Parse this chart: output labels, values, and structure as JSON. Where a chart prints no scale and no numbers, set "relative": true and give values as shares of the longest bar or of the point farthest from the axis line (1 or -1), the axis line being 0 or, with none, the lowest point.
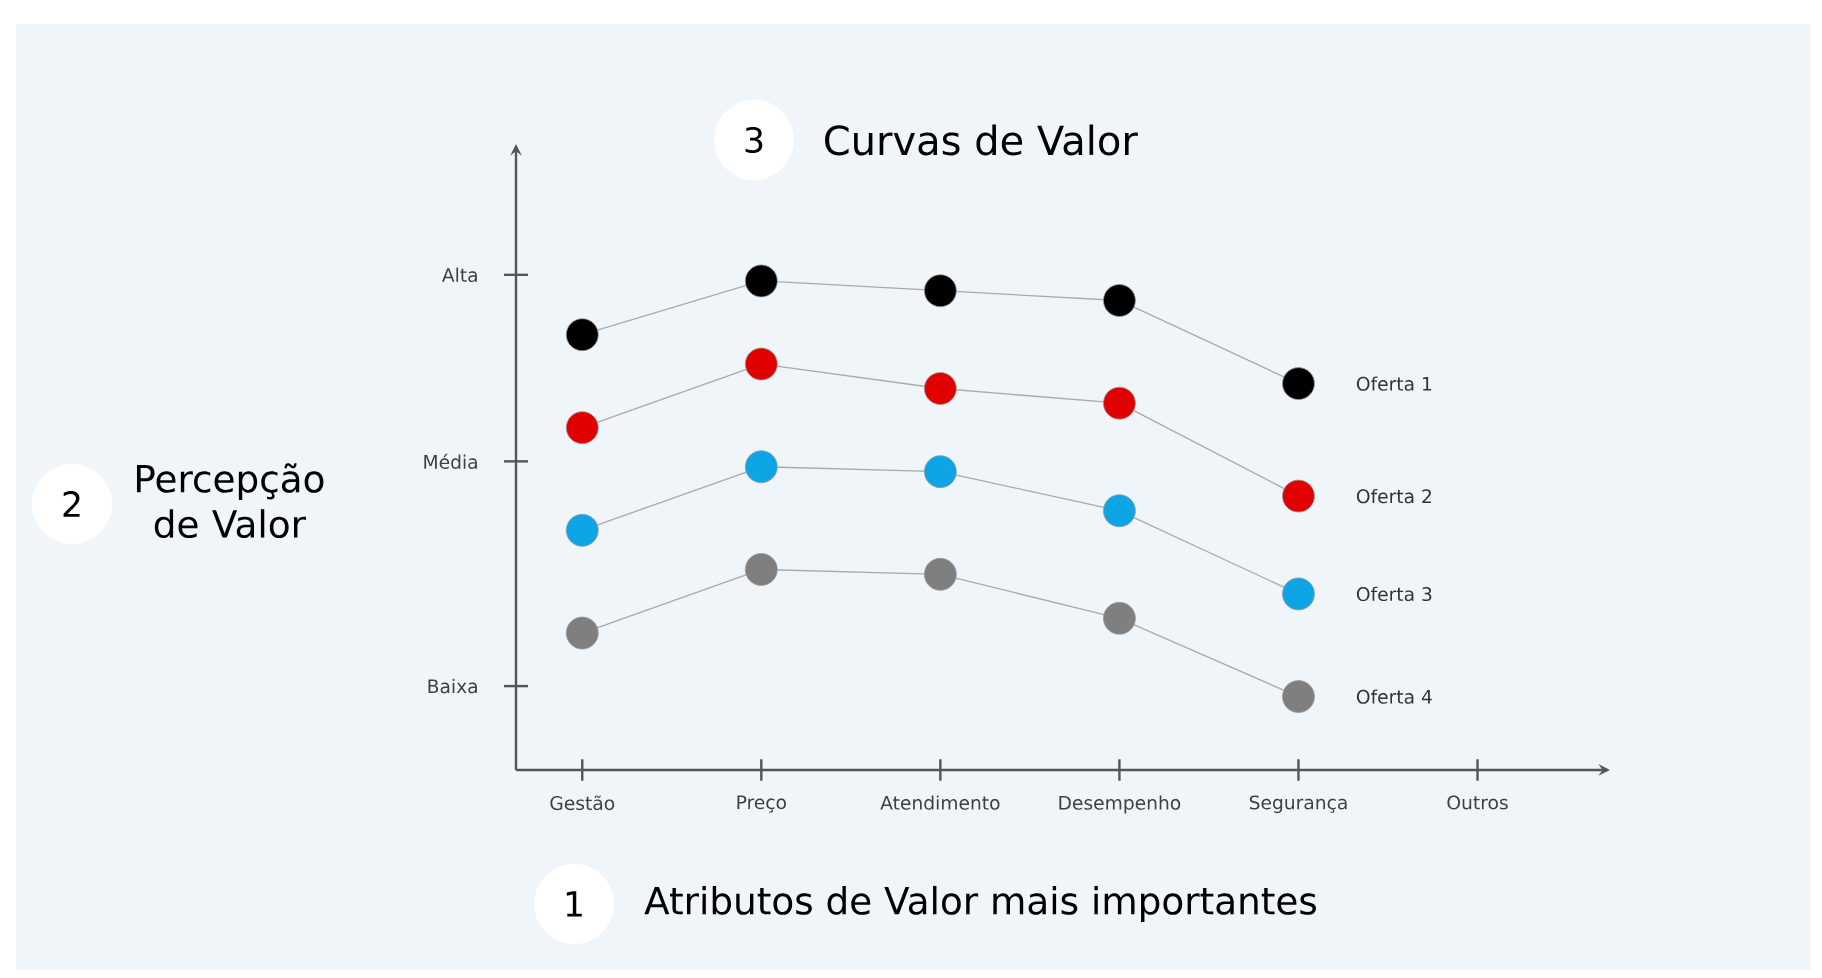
{
  "chart_data": {
    "type": "line",
    "title": "Curvas de Valor",
    "xlabel": "Atributos de Valor mais importantes",
    "annotations": [
      "1",
      "2",
      "3",
      "Percepção de Valor",
      "Alta",
      "Média",
      "Baixa"
    ],
    "categories": [
      "Gestão",
      "Preço",
      "Atendimento",
      "Desempenho",
      "Segurança",
      "Outros"
    ],
    "relative": true,
    "series": [
      {
        "name": "Oferta 1",
        "color": "#000000",
        "values": [
          0.89,
          1.0,
          0.98,
          0.96,
          0.79,
          null
        ]
      },
      {
        "name": "Oferta 2",
        "color": "#e00000",
        "values": [
          0.7,
          0.83,
          0.78,
          0.75,
          0.56,
          null
        ]
      },
      {
        "name": "Oferta 3",
        "color": "#0ea5e6",
        "values": [
          0.49,
          0.62,
          0.61,
          0.53,
          0.36,
          null
        ]
      },
      {
        "name": "Oferta 4",
        "color": "#7f7f7f",
        "values": [
          0.28,
          0.41,
          0.4,
          0.31,
          0.15,
          null
        ]
      }
    ],
    "grid": false,
    "legend": false,
    "marker": "circle",
    "line_style": "solid"
  }
}
